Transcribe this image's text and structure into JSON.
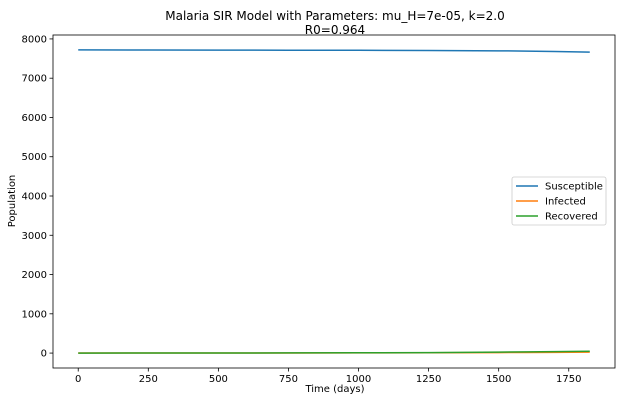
{
  "chart_data": {
    "type": "line",
    "title": "Malaria SIR Model with Parameters: mu_H=7e-05, k=2.0",
    "subtitle": "R0=0.964",
    "xlabel": "Time (days)",
    "ylabel": "Population",
    "xlim": [
      -90,
      1915
    ],
    "ylim": [
      -380,
      8100
    ],
    "xticks": [
      0,
      250,
      500,
      750,
      1000,
      1250,
      1500,
      1750
    ],
    "yticks": [
      0,
      1000,
      2000,
      3000,
      4000,
      5000,
      6000,
      7000,
      8000
    ],
    "grid": false,
    "legend_position": "center-right",
    "series": [
      {
        "name": "Susceptible",
        "color": "#1f77b4",
        "x": [
          0,
          250,
          500,
          750,
          1000,
          1250,
          1500,
          1600,
          1700,
          1825
        ],
        "values": [
          7720,
          7718,
          7716,
          7713,
          7710,
          7705,
          7697,
          7690,
          7680,
          7665
        ]
      },
      {
        "name": "Infected",
        "color": "#ff7f0e",
        "x": [
          0,
          250,
          500,
          750,
          1000,
          1250,
          1500,
          1600,
          1700,
          1825
        ],
        "values": [
          1,
          1,
          2,
          3,
          5,
          8,
          13,
          16,
          19,
          24
        ]
      },
      {
        "name": "Recovered",
        "color": "#2ca02c",
        "x": [
          0,
          250,
          500,
          750,
          1000,
          1250,
          1500,
          1600,
          1700,
          1825
        ],
        "values": [
          0,
          1,
          2,
          4,
          7,
          13,
          24,
          30,
          36,
          45
        ]
      }
    ]
  }
}
